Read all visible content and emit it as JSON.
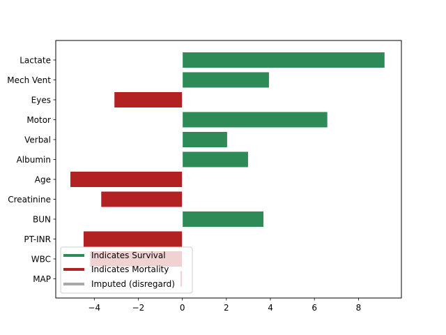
{
  "chart_data": {
    "type": "bar",
    "orientation": "horizontal",
    "categories": [
      "Lactate",
      "Mech Vent",
      "Eyes",
      "Motor",
      "Verbal",
      "Albumin",
      "Age",
      "Creatinine",
      "BUN",
      "PT-INR",
      "WBC",
      "MAP"
    ],
    "values": [
      9.2,
      3.95,
      -3.1,
      6.6,
      2.05,
      3.0,
      -5.1,
      -3.7,
      3.7,
      -4.5,
      -4.2,
      -0.1
    ],
    "bar_status": [
      "survival",
      "survival",
      "mortality",
      "survival",
      "survival",
      "survival",
      "mortality",
      "mortality",
      "survival",
      "mortality",
      "mortality",
      "mortality"
    ],
    "xlim": [
      -5.75,
      9.95
    ],
    "xticks": [
      -4,
      -2,
      0,
      2,
      4,
      6,
      8
    ],
    "xtick_labels": [
      "−4",
      "−2",
      "0",
      "2",
      "4",
      "6",
      "8"
    ],
    "title": "",
    "xlabel": "",
    "ylabel": "",
    "grid": false,
    "legend_position": "lower-left",
    "legend": [
      {
        "label": "Indicates Survival",
        "color": "#2e8b57"
      },
      {
        "label": "Indicates Mortality",
        "color": "#b22222"
      },
      {
        "label": "Imputed (disregard)",
        "color": "#a9a9a9"
      }
    ],
    "colors": {
      "survival": "#2e8b57",
      "mortality": "#b22222"
    }
  }
}
